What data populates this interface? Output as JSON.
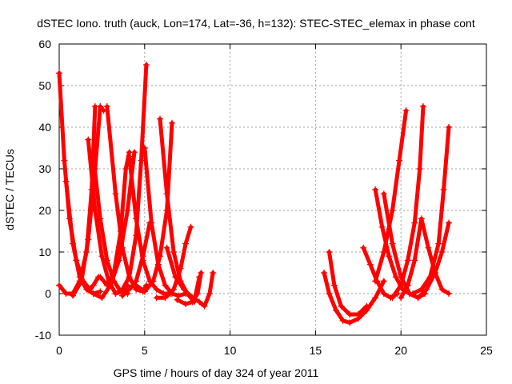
{
  "chart_data": {
    "type": "scatter",
    "title": "dSTEC Iono. truth (auck, Lon=174, Lat=-36, h=132): STEC-STEC_elemax in phase cont",
    "xlabel": "GPS time / hours of day 324 of year 2011",
    "ylabel": "dSTEC  / TECUs",
    "xlim": [
      0,
      25
    ],
    "ylim": [
      -10,
      60
    ],
    "xticks": [
      0,
      5,
      10,
      15,
      20,
      25
    ],
    "yticks": [
      -10,
      0,
      10,
      20,
      30,
      40,
      50,
      60
    ],
    "grid": true,
    "marker": "+",
    "color": "#ff0000",
    "series": [
      {
        "x": [
          0.0,
          0.3,
          0.6,
          1.0,
          1.4,
          1.8,
          2.0,
          2.3
        ],
        "y": [
          53,
          32,
          18,
          8,
          3,
          1,
          2,
          4
        ]
      },
      {
        "x": [
          0.0,
          0.4,
          0.8,
          1.2,
          1.6,
          1.9,
          2.1
        ],
        "y": [
          2,
          0,
          0,
          3,
          10,
          25,
          45
        ]
      },
      {
        "x": [
          0.4,
          0.8,
          1.2,
          1.6,
          2.0,
          2.4
        ],
        "y": [
          27,
          12,
          4,
          1,
          0,
          0.5
        ]
      },
      {
        "x": [
          0.8,
          1.3,
          1.7,
          2.1,
          2.4,
          2.6
        ],
        "y": [
          -0.5,
          3,
          13,
          30,
          45,
          44
        ]
      },
      {
        "x": [
          1.7,
          2.1,
          2.5,
          2.9,
          3.3,
          3.7,
          4.0
        ],
        "y": [
          37,
          20,
          9,
          3,
          0,
          0.5,
          2
        ]
      },
      {
        "x": [
          2.0,
          2.4,
          2.8,
          3.2,
          3.6,
          4.0
        ],
        "y": [
          33,
          18,
          8,
          3,
          0.5,
          0
        ]
      },
      {
        "x": [
          2.0,
          2.5,
          3.0,
          3.5,
          4.0,
          4.4
        ],
        "y": [
          0,
          -1,
          2,
          8,
          20,
          34
        ]
      },
      {
        "x": [
          2.4,
          2.8,
          3.2,
          3.6,
          3.9,
          4.1
        ],
        "y": [
          4,
          2,
          5,
          15,
          30,
          34
        ]
      },
      {
        "x": [
          2.8,
          3.3,
          3.7,
          4.1,
          4.5,
          4.9,
          5.1
        ],
        "y": [
          45,
          24,
          11,
          4,
          1,
          0.5,
          2
        ]
      },
      {
        "x": [
          3.3,
          3.7,
          4.1,
          4.5,
          4.8,
          5.1
        ],
        "y": [
          0,
          1,
          4,
          14,
          32,
          55
        ]
      },
      {
        "x": [
          3.7,
          4.1,
          4.5,
          4.9,
          5.3
        ],
        "y": [
          -0.5,
          1,
          3,
          9,
          17
        ]
      },
      {
        "x": [
          4.1,
          4.5,
          4.9,
          5.3,
          5.7,
          6.1,
          6.5
        ],
        "y": [
          33,
          18,
          8,
          3,
          1,
          0,
          0
        ]
      },
      {
        "x": [
          5.0,
          5.4,
          5.8,
          6.2,
          6.6,
          7.0,
          7.4
        ],
        "y": [
          35,
          17,
          7,
          2,
          0,
          -0.5,
          0
        ]
      },
      {
        "x": [
          4.5,
          5.0,
          5.5,
          5.9,
          6.3,
          6.6
        ],
        "y": [
          2,
          0.5,
          3,
          9,
          20,
          41
        ]
      },
      {
        "x": [
          5.9,
          6.3,
          6.7,
          7.1,
          7.5,
          7.9,
          8.2
        ],
        "y": [
          42,
          24,
          10,
          3,
          0,
          -2,
          4
        ]
      },
      {
        "x": [
          5.7,
          6.2,
          6.7,
          7.1,
          7.4,
          7.7
        ],
        "y": [
          -1,
          -1,
          1,
          6,
          12,
          16
        ]
      },
      {
        "x": [
          6.3,
          6.8,
          7.3,
          7.8,
          8.2,
          8.5,
          8.8,
          9.0
        ],
        "y": [
          11,
          4,
          1,
          -1,
          -2,
          -3,
          0,
          5
        ]
      },
      {
        "x": [
          6.9,
          7.4,
          7.8,
          8.1,
          8.3
        ],
        "y": [
          -1.5,
          -2.5,
          -2,
          0,
          5
        ]
      },
      {
        "x": [
          15.5,
          15.8,
          16.2,
          16.6,
          17.0,
          17.5,
          18.0,
          18.5,
          19.0
        ],
        "y": [
          5,
          0,
          -4,
          -6.5,
          -7,
          -6,
          -4,
          -1,
          3
        ]
      },
      {
        "x": [
          15.8,
          16.1,
          16.5,
          17.0,
          17.5,
          18.0
        ],
        "y": [
          10,
          2,
          -3,
          -5,
          -5,
          -3
        ]
      },
      {
        "x": [
          17.8,
          18.2,
          18.6,
          19.0,
          19.4,
          19.8
        ],
        "y": [
          11,
          7,
          3,
          0,
          -1,
          0
        ]
      },
      {
        "x": [
          18.5,
          18.9,
          19.3,
          19.7,
          20.1,
          20.5
        ],
        "y": [
          25,
          16,
          9,
          4,
          1,
          0
        ]
      },
      {
        "x": [
          19.0,
          19.5,
          20.0,
          20.5,
          21.0,
          21.4
        ],
        "y": [
          24,
          12,
          4,
          0,
          -1,
          0
        ]
      },
      {
        "x": [
          18.5,
          19.0,
          19.5,
          19.9,
          20.3
        ],
        "y": [
          3,
          10,
          20,
          32,
          44
        ]
      },
      {
        "x": [
          19.5,
          20.0,
          20.4,
          20.8,
          21.1,
          21.3
        ],
        "y": [
          -1,
          2,
          8,
          17,
          30,
          45
        ]
      },
      {
        "x": [
          20.0,
          20.4,
          20.8,
          21.2,
          21.6,
          22.0,
          22.4,
          22.8
        ],
        "y": [
          -1,
          2,
          8,
          18,
          11,
          5,
          1,
          0
        ]
      },
      {
        "x": [
          20.7,
          21.2,
          21.7,
          22.2,
          22.5,
          22.8
        ],
        "y": [
          0,
          1,
          4,
          12,
          25,
          40
        ]
      },
      {
        "x": [
          21.0,
          21.5,
          22.0,
          22.4,
          22.8
        ],
        "y": [
          -1,
          1,
          5,
          10,
          17
        ]
      }
    ]
  }
}
